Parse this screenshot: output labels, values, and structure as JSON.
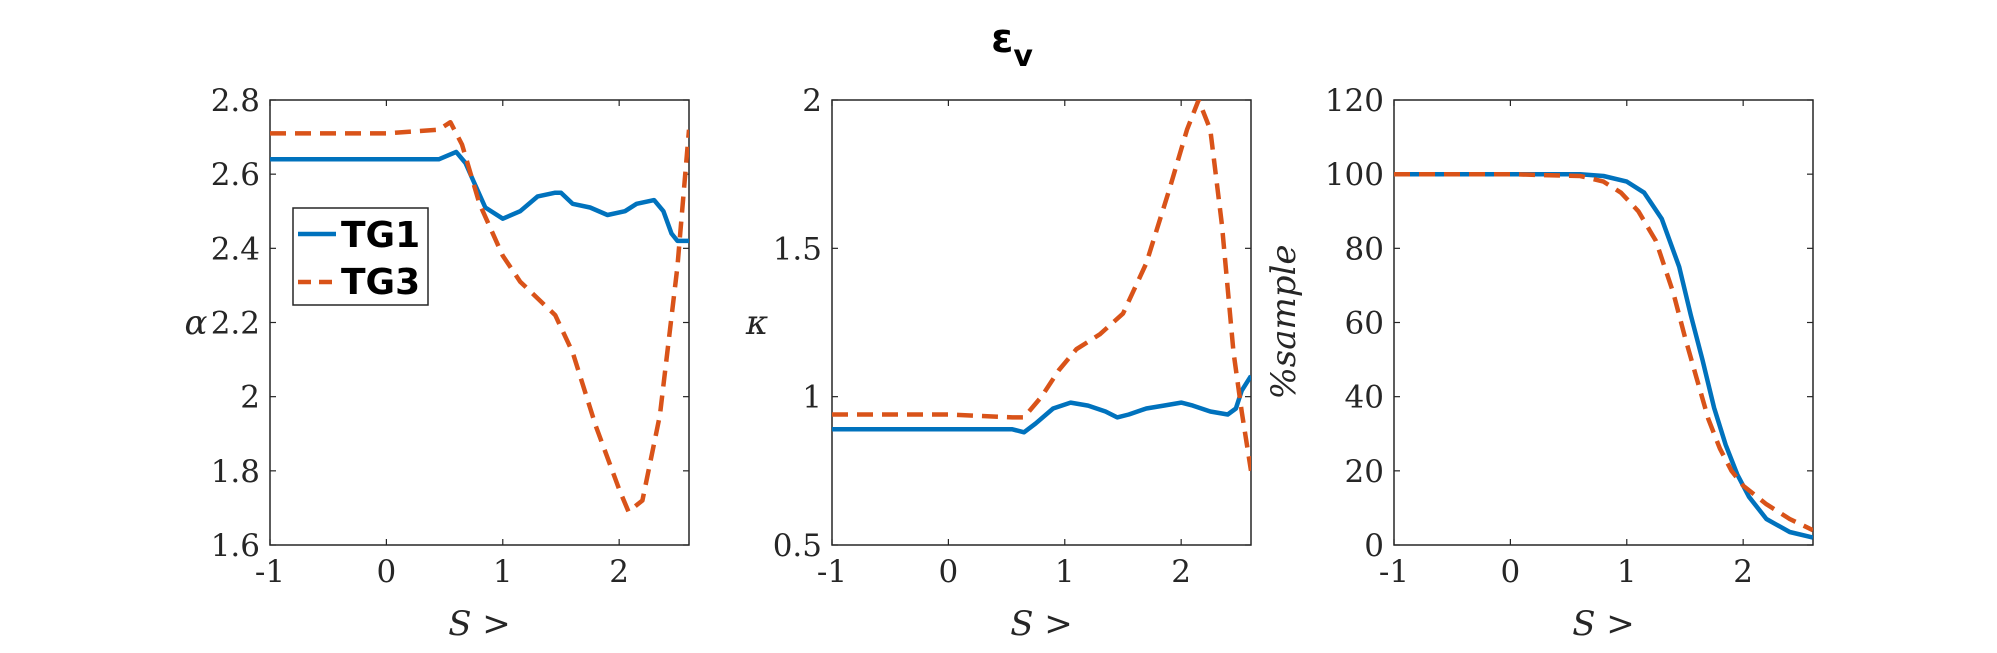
{
  "figure": {
    "title": "ε",
    "title_sub": "v"
  },
  "legend": {
    "entries": [
      {
        "label": "TG1",
        "color": "#0072BD",
        "style": "solid"
      },
      {
        "label": "TG3",
        "color": "#D95319",
        "style": "dashed"
      }
    ]
  },
  "chart_data": [
    {
      "type": "line",
      "xlabel": "S >",
      "ylabel": "α",
      "xlim": [
        -1,
        2.6
      ],
      "ylim": [
        1.6,
        2.8
      ],
      "xticks": [
        "-1",
        "0",
        "1",
        "2"
      ],
      "yticks": [
        "1.6",
        "1.8",
        "2",
        "2.2",
        "2.4",
        "2.6",
        "2.8"
      ],
      "series": [
        {
          "name": "TG1",
          "color": "#0072BD",
          "dash": "solid",
          "x": [
            -1,
            0,
            0.45,
            0.6,
            0.68,
            0.75,
            0.85,
            1.0,
            1.15,
            1.3,
            1.45,
            1.5,
            1.6,
            1.75,
            1.9,
            2.05,
            2.15,
            2.3,
            2.38,
            2.45,
            2.5,
            2.6
          ],
          "y": [
            2.64,
            2.64,
            2.64,
            2.66,
            2.63,
            2.58,
            2.51,
            2.48,
            2.5,
            2.54,
            2.55,
            2.55,
            2.52,
            2.51,
            2.49,
            2.5,
            2.52,
            2.53,
            2.5,
            2.44,
            2.42,
            2.42
          ]
        },
        {
          "name": "TG3",
          "color": "#D95319",
          "dash": "dashed",
          "x": [
            -1,
            0,
            0.45,
            0.55,
            0.65,
            0.8,
            1.0,
            1.15,
            1.35,
            1.45,
            1.6,
            1.8,
            2.0,
            2.08,
            2.2,
            2.35,
            2.5,
            2.6
          ],
          "y": [
            2.71,
            2.71,
            2.72,
            2.74,
            2.68,
            2.52,
            2.38,
            2.31,
            2.25,
            2.22,
            2.12,
            1.92,
            1.75,
            1.69,
            1.72,
            1.95,
            2.35,
            2.72
          ]
        }
      ]
    },
    {
      "type": "line",
      "xlabel": "S >",
      "ylabel": "κ",
      "xlim": [
        -1,
        2.6
      ],
      "ylim": [
        0.5,
        2
      ],
      "xticks": [
        "-1",
        "0",
        "1",
        "2"
      ],
      "yticks": [
        "0.5",
        "1",
        "1.5",
        "2"
      ],
      "series": [
        {
          "name": "TG1",
          "color": "#0072BD",
          "dash": "solid",
          "x": [
            -1,
            0,
            0.55,
            0.65,
            0.75,
            0.9,
            1.05,
            1.2,
            1.35,
            1.45,
            1.55,
            1.7,
            1.85,
            2.0,
            2.1,
            2.25,
            2.4,
            2.47,
            2.52,
            2.6
          ],
          "y": [
            0.89,
            0.89,
            0.89,
            0.88,
            0.91,
            0.96,
            0.98,
            0.97,
            0.95,
            0.93,
            0.94,
            0.96,
            0.97,
            0.98,
            0.97,
            0.95,
            0.94,
            0.96,
            1.02,
            1.07
          ]
        },
        {
          "name": "TG3",
          "color": "#D95319",
          "dash": "dashed",
          "x": [
            -1,
            0,
            0.55,
            0.65,
            0.8,
            0.95,
            1.1,
            1.3,
            1.5,
            1.7,
            1.9,
            2.05,
            2.15,
            2.25,
            2.35,
            2.45,
            2.52,
            2.6
          ],
          "y": [
            0.94,
            0.94,
            0.93,
            0.93,
            1.0,
            1.09,
            1.16,
            1.21,
            1.28,
            1.45,
            1.7,
            1.9,
            2.0,
            1.9,
            1.58,
            1.15,
            0.95,
            0.75
          ]
        }
      ]
    },
    {
      "type": "line",
      "xlabel": "S >",
      "ylabel": "%sample",
      "xlim": [
        -1,
        2.6
      ],
      "ylim": [
        0,
        120
      ],
      "xticks": [
        "-1",
        "0",
        "1",
        "2"
      ],
      "yticks": [
        "0",
        "20",
        "40",
        "60",
        "80",
        "100",
        "120"
      ],
      "series": [
        {
          "name": "TG1",
          "color": "#0072BD",
          "dash": "solid",
          "x": [
            -1,
            0,
            0.6,
            0.8,
            1.0,
            1.15,
            1.3,
            1.45,
            1.55,
            1.65,
            1.75,
            1.85,
            1.95,
            2.05,
            2.2,
            2.4,
            2.6
          ],
          "y": [
            100,
            100,
            100,
            99.5,
            98,
            95,
            88,
            75,
            62,
            50,
            37,
            27,
            19,
            13,
            7,
            3.5,
            2
          ]
        },
        {
          "name": "TG3",
          "color": "#D95319",
          "dash": "dashed",
          "x": [
            -1,
            0,
            0.6,
            0.8,
            0.95,
            1.1,
            1.25,
            1.4,
            1.5,
            1.6,
            1.7,
            1.8,
            1.9,
            2.0,
            2.2,
            2.4,
            2.6
          ],
          "y": [
            100,
            100,
            99.5,
            98,
            95,
            90,
            82,
            68,
            56,
            45,
            34,
            26,
            20,
            16,
            11,
            7,
            4
          ]
        }
      ]
    }
  ]
}
